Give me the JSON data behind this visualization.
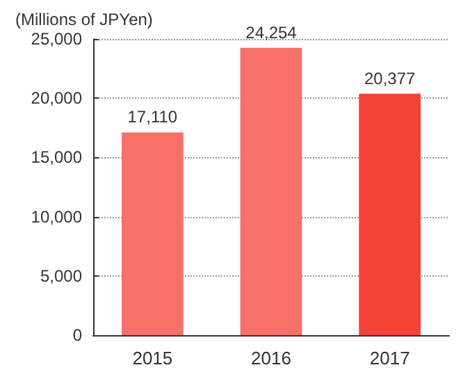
{
  "chart_data": {
    "type": "bar",
    "ylabel": "(Millions of JPYen)",
    "categories": [
      "2015",
      "2016",
      "2017"
    ],
    "values": [
      17110,
      24254,
      20377
    ],
    "colors": [
      "#f7706a",
      "#f7706a",
      "#f44336"
    ],
    "value_labels": [
      "17,110",
      "24,254",
      "20,377"
    ],
    "ylim": [
      0,
      25000
    ],
    "yticks": [
      {
        "value": 0,
        "label": "0"
      },
      {
        "value": 5000,
        "label": "5,000"
      },
      {
        "value": 10000,
        "label": "10,000"
      },
      {
        "value": 15000,
        "label": "15,000"
      },
      {
        "value": 20000,
        "label": "20,000"
      },
      {
        "value": 25000,
        "label": "25,000"
      }
    ],
    "grid": "y"
  }
}
